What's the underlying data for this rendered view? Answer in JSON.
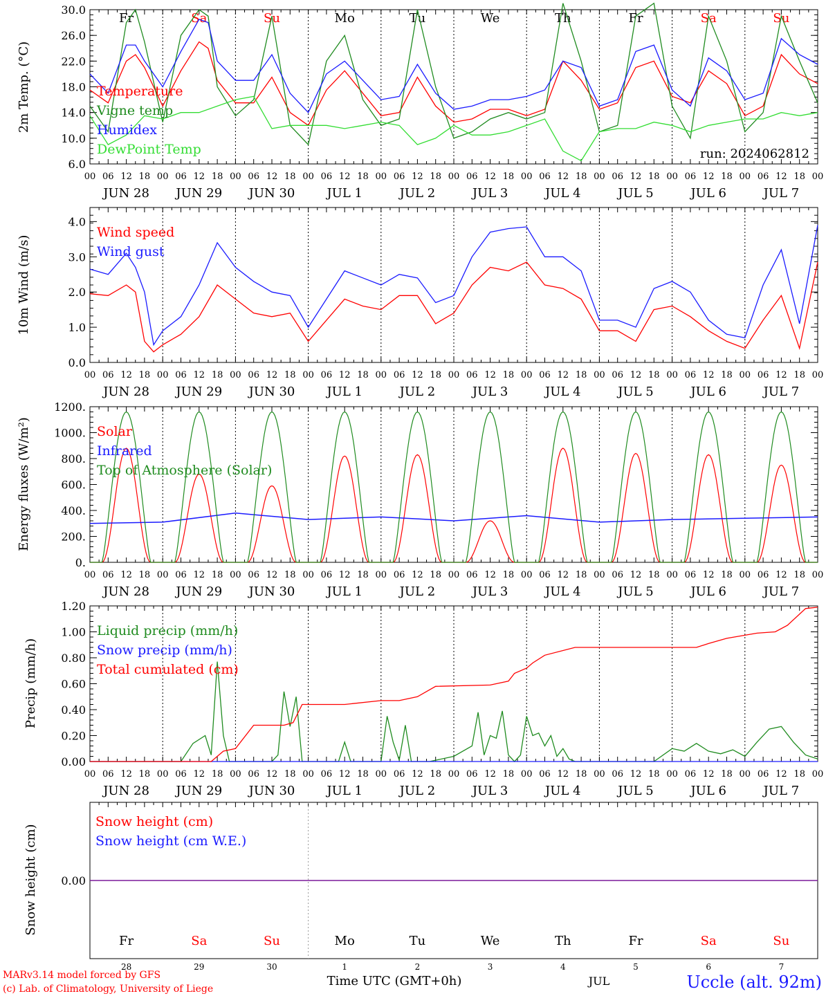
{
  "colors": {
    "red": "#ff0000",
    "green": "#1f8b1f",
    "blue": "#1a1aff",
    "lightgreen": "#33dd33",
    "purple": "#7a1a9a",
    "black": "#000000",
    "grey": "#999999"
  },
  "time": {
    "start": "2024-06-28 00:00",
    "hours": 240,
    "hour_tick_labels": [
      "00",
      "06",
      "12",
      "18"
    ],
    "date_labels": [
      "JUN 28",
      "JUN 29",
      "JUN 30",
      "JUL  1",
      "JUL  2",
      "JUL  3",
      "JUL  4",
      "JUL  5",
      "JUL  6",
      "JUL  7"
    ],
    "weekdays": [
      "Fr",
      "Sa",
      "Su",
      "Mo",
      "Tu",
      "We",
      "Th",
      "Fr",
      "Sa",
      "Su"
    ],
    "weekday_colors": [
      "black",
      "red",
      "red",
      "black",
      "black",
      "black",
      "black",
      "black",
      "red",
      "red"
    ],
    "day_numbers": [
      "28",
      "29",
      "30",
      "1",
      "2",
      "3",
      "4",
      "5",
      "6",
      "7"
    ],
    "month_label": "JUL",
    "axis_title": "Time UTC (GMT+0h)"
  },
  "footer": {
    "model": "MARv3.14 model forced by GFS",
    "copyright": "(c) Lab. of Climatology, University of Liege",
    "station": "Uccle (alt. 92m)"
  },
  "chart_data": [
    {
      "type": "line",
      "ylabel": "2m Temp. (°C)",
      "ylim": [
        6,
        30
      ],
      "yticks": [
        "6.0",
        "10.0",
        "14.0",
        "18.0",
        "22.0",
        "26.0",
        "30.0"
      ],
      "run_label": "run: 2024062812",
      "legend_placement": "left",
      "series": [
        {
          "name": "Temperature",
          "color": "red",
          "x": [
            0,
            6,
            12,
            15,
            18,
            24,
            30,
            36,
            39,
            42,
            48,
            54,
            60,
            66,
            72,
            78,
            84,
            90,
            96,
            102,
            108,
            114,
            120,
            126,
            132,
            138,
            144,
            150,
            156,
            162,
            168,
            174,
            180,
            186,
            192,
            198,
            204,
            210,
            216,
            222,
            228,
            234,
            240
          ],
          "y": [
            17.5,
            15.5,
            22,
            23,
            21,
            15,
            20.5,
            25,
            24,
            19,
            15.5,
            15.5,
            19.5,
            14,
            12,
            17.5,
            20.5,
            17,
            13.5,
            14,
            19.5,
            15,
            12.5,
            13,
            14.5,
            14.5,
            13.5,
            14.5,
            22,
            19,
            14.5,
            15.5,
            21,
            22,
            16.5,
            15.5,
            20.5,
            18.5,
            13.5,
            15,
            23,
            20,
            18.5
          ]
        },
        {
          "name": "Vigne temp",
          "color": "green",
          "x": [
            0,
            6,
            12,
            15,
            18,
            24,
            30,
            36,
            39,
            42,
            48,
            54,
            60,
            66,
            72,
            78,
            84,
            90,
            96,
            102,
            108,
            114,
            120,
            126,
            132,
            138,
            144,
            150,
            156,
            162,
            168,
            174,
            180,
            186,
            192,
            198,
            204,
            210,
            216,
            222,
            228,
            234,
            240
          ],
          "y": [
            15,
            11,
            28,
            30,
            25,
            12.5,
            26,
            30,
            29,
            18,
            13.5,
            16,
            29,
            12,
            9,
            22,
            26,
            16,
            12,
            13,
            30,
            18,
            10,
            11,
            13,
            14,
            13,
            14,
            31,
            22,
            11,
            12,
            29,
            31,
            15,
            10,
            29,
            22,
            11,
            14,
            29,
            22,
            15.5
          ]
        },
        {
          "name": "Humidex",
          "color": "blue",
          "x": [
            0,
            6,
            12,
            15,
            18,
            24,
            30,
            36,
            39,
            42,
            48,
            54,
            60,
            66,
            72,
            78,
            84,
            90,
            96,
            102,
            108,
            114,
            120,
            126,
            132,
            138,
            144,
            150,
            156,
            162,
            168,
            174,
            180,
            186,
            192,
            198,
            204,
            210,
            216,
            222,
            228,
            234,
            240
          ],
          "y": [
            20,
            17,
            24.5,
            24.5,
            22,
            18,
            23.5,
            28.5,
            28,
            22,
            19,
            19,
            23,
            17,
            14,
            20,
            22,
            19,
            16,
            16.5,
            21.5,
            17,
            14.5,
            15,
            16,
            16,
            16.5,
            17.5,
            22,
            21,
            15,
            16,
            23.5,
            24.5,
            17.5,
            15,
            22.5,
            20.5,
            16,
            17,
            25.5,
            23,
            21.5
          ]
        },
        {
          "name": "DewPoint Temp",
          "color": "lightgreen",
          "x": [
            0,
            6,
            12,
            18,
            24,
            30,
            36,
            42,
            48,
            54,
            60,
            66,
            72,
            78,
            84,
            90,
            96,
            102,
            108,
            114,
            120,
            126,
            132,
            138,
            144,
            150,
            156,
            162,
            168,
            174,
            180,
            186,
            192,
            198,
            204,
            210,
            216,
            222,
            228,
            234,
            240
          ],
          "y": [
            13.5,
            9,
            10.5,
            13.5,
            13,
            14,
            14,
            15,
            16,
            16.5,
            11.5,
            12,
            12,
            12,
            11.5,
            12,
            12.5,
            12,
            9,
            10,
            12,
            10.5,
            10.5,
            11,
            12,
            13,
            8,
            6.5,
            11,
            11.5,
            11.5,
            12.5,
            12,
            11,
            12,
            12.5,
            13,
            13,
            14,
            13.5,
            14
          ]
        }
      ]
    },
    {
      "type": "line",
      "ylabel": "10m Wind (m/s)",
      "ylim": [
        0,
        4.4
      ],
      "yticks": [
        "0.0",
        "1.0",
        "2.0",
        "3.0",
        "4.0"
      ],
      "legend_placement": "left",
      "series": [
        {
          "name": "Wind speed",
          "color": "red",
          "x": [
            0,
            6,
            12,
            15,
            18,
            21,
            24,
            30,
            36,
            42,
            48,
            54,
            60,
            66,
            72,
            78,
            84,
            90,
            96,
            102,
            108,
            114,
            120,
            126,
            132,
            138,
            144,
            150,
            156,
            162,
            168,
            174,
            180,
            186,
            192,
            198,
            204,
            210,
            216,
            222,
            228,
            234,
            240
          ],
          "y": [
            1.95,
            1.9,
            2.2,
            2.0,
            0.6,
            0.3,
            0.5,
            0.8,
            1.3,
            2.2,
            1.8,
            1.4,
            1.3,
            1.4,
            0.6,
            1.2,
            1.8,
            1.6,
            1.5,
            1.9,
            1.9,
            1.1,
            1.4,
            2.2,
            2.7,
            2.6,
            2.85,
            2.2,
            2.1,
            1.8,
            0.9,
            0.9,
            0.6,
            1.5,
            1.6,
            1.3,
            0.9,
            0.6,
            0.4,
            1.2,
            1.9,
            0.4,
            2.85
          ]
        },
        {
          "name": "Wind gust",
          "color": "blue",
          "x": [
            0,
            6,
            12,
            15,
            18,
            21,
            24,
            30,
            36,
            42,
            48,
            54,
            60,
            66,
            72,
            78,
            84,
            90,
            96,
            102,
            108,
            114,
            120,
            126,
            132,
            138,
            144,
            150,
            156,
            162,
            168,
            174,
            180,
            186,
            192,
            198,
            204,
            210,
            216,
            222,
            228,
            234,
            240
          ],
          "y": [
            2.65,
            2.5,
            3.1,
            2.7,
            2.0,
            0.5,
            0.9,
            1.3,
            2.2,
            3.4,
            2.7,
            2.3,
            2.0,
            1.9,
            1.0,
            1.8,
            2.6,
            2.4,
            2.2,
            2.5,
            2.4,
            1.7,
            1.9,
            3.0,
            3.7,
            3.8,
            3.85,
            3.0,
            3.0,
            2.6,
            1.2,
            1.2,
            1.0,
            2.1,
            2.3,
            2.0,
            1.2,
            0.8,
            0.7,
            2.2,
            3.2,
            1.1,
            3.9
          ]
        }
      ]
    },
    {
      "type": "line",
      "ylabel": "Energy fluxes (W/m²)",
      "ylim": [
        0,
        1200
      ],
      "yticks": [
        "0.",
        "200.",
        "400.",
        "600.",
        "800.",
        "1000.",
        "1200."
      ],
      "legend_placement": "left",
      "series": [
        {
          "name": "Solar",
          "color": "red",
          "peaks": [
            880,
            680,
            590,
            820,
            830,
            320,
            880,
            840,
            830,
            750
          ]
        },
        {
          "name": "Infrared",
          "color": "blue",
          "x": [
            0,
            24,
            48,
            72,
            96,
            120,
            144,
            168,
            192,
            216,
            240
          ],
          "y": [
            300,
            310,
            380,
            330,
            350,
            320,
            360,
            310,
            330,
            340,
            350
          ]
        },
        {
          "name": "Top of Atmosphere (Solar)",
          "color": "green",
          "peaks": [
            1160,
            1160,
            1160,
            1160,
            1160,
            1160,
            1160,
            1160,
            1160,
            1160
          ]
        }
      ]
    },
    {
      "type": "line",
      "ylabel": "Precip (mm/h)",
      "ylim": [
        0,
        1.2
      ],
      "yticks": [
        "0.00",
        "0.20",
        "0.40",
        "0.60",
        "0.80",
        "1.00",
        "1.20"
      ],
      "legend_placement": "left",
      "series": [
        {
          "name": "Liquid precip (mm/h)",
          "color": "green",
          "x": [
            0,
            30,
            34,
            38,
            40,
            42,
            44,
            46,
            48,
            50,
            52,
            54,
            56,
            58,
            60,
            62,
            64,
            66,
            68,
            70,
            72,
            82,
            84,
            86,
            96,
            98,
            100,
            102,
            104,
            106,
            108,
            110,
            112,
            120,
            126,
            128,
            130,
            132,
            134,
            136,
            138,
            140,
            142,
            144,
            146,
            148,
            150,
            152,
            154,
            156,
            158,
            160,
            186,
            192,
            196,
            200,
            204,
            208,
            212,
            216,
            220,
            224,
            228,
            232,
            236,
            240
          ],
          "y": [
            0,
            0,
            0.14,
            0.2,
            0.05,
            0.77,
            0.2,
            0,
            0,
            0,
            0,
            0,
            0,
            0,
            0,
            0.05,
            0.54,
            0.27,
            0.5,
            0,
            0,
            0,
            0.15,
            0,
            0,
            0.35,
            0.15,
            0.01,
            0.28,
            0,
            0,
            0,
            0,
            0.04,
            0.12,
            0.38,
            0.05,
            0.2,
            0.18,
            0.39,
            0.05,
            0,
            0.05,
            0.35,
            0.2,
            0.22,
            0.12,
            0.2,
            0.04,
            0.1,
            0.02,
            0,
            0,
            0.1,
            0.08,
            0.14,
            0.08,
            0.06,
            0.09,
            0.04,
            0.15,
            0.25,
            0.27,
            0.15,
            0.05,
            0.02
          ]
        },
        {
          "name": "Snow precip (mm/h)",
          "color": "blue",
          "x": [
            0,
            240
          ],
          "y": [
            0,
            0
          ]
        },
        {
          "name": "Total cumulated (cm)",
          "color": "red",
          "x": [
            0,
            40,
            44,
            48,
            54,
            64,
            67,
            70,
            84,
            96,
            102,
            108,
            114,
            132,
            138,
            140,
            144,
            146,
            150,
            160,
            200,
            204,
            210,
            220,
            226,
            230,
            236,
            240
          ],
          "y": [
            0,
            0,
            0.08,
            0.1,
            0.28,
            0.28,
            0.3,
            0.44,
            0.44,
            0.47,
            0.47,
            0.5,
            0.58,
            0.59,
            0.62,
            0.68,
            0.72,
            0.76,
            0.82,
            0.88,
            0.88,
            0.91,
            0.95,
            0.99,
            1.0,
            1.05,
            1.18,
            1.19
          ]
        }
      ]
    },
    {
      "type": "line",
      "ylabel": "Snow height (cm)",
      "yticks": [
        "0.00"
      ],
      "legend_placement": "left",
      "series": [
        {
          "name": "Snow height (cm)",
          "color": "red",
          "x": [
            0,
            240
          ],
          "y": [
            0,
            0
          ]
        },
        {
          "name": "Snow height (cm W.E.)",
          "color": "blue",
          "x": [
            0,
            240
          ],
          "y": [
            0,
            0
          ]
        }
      ]
    }
  ]
}
